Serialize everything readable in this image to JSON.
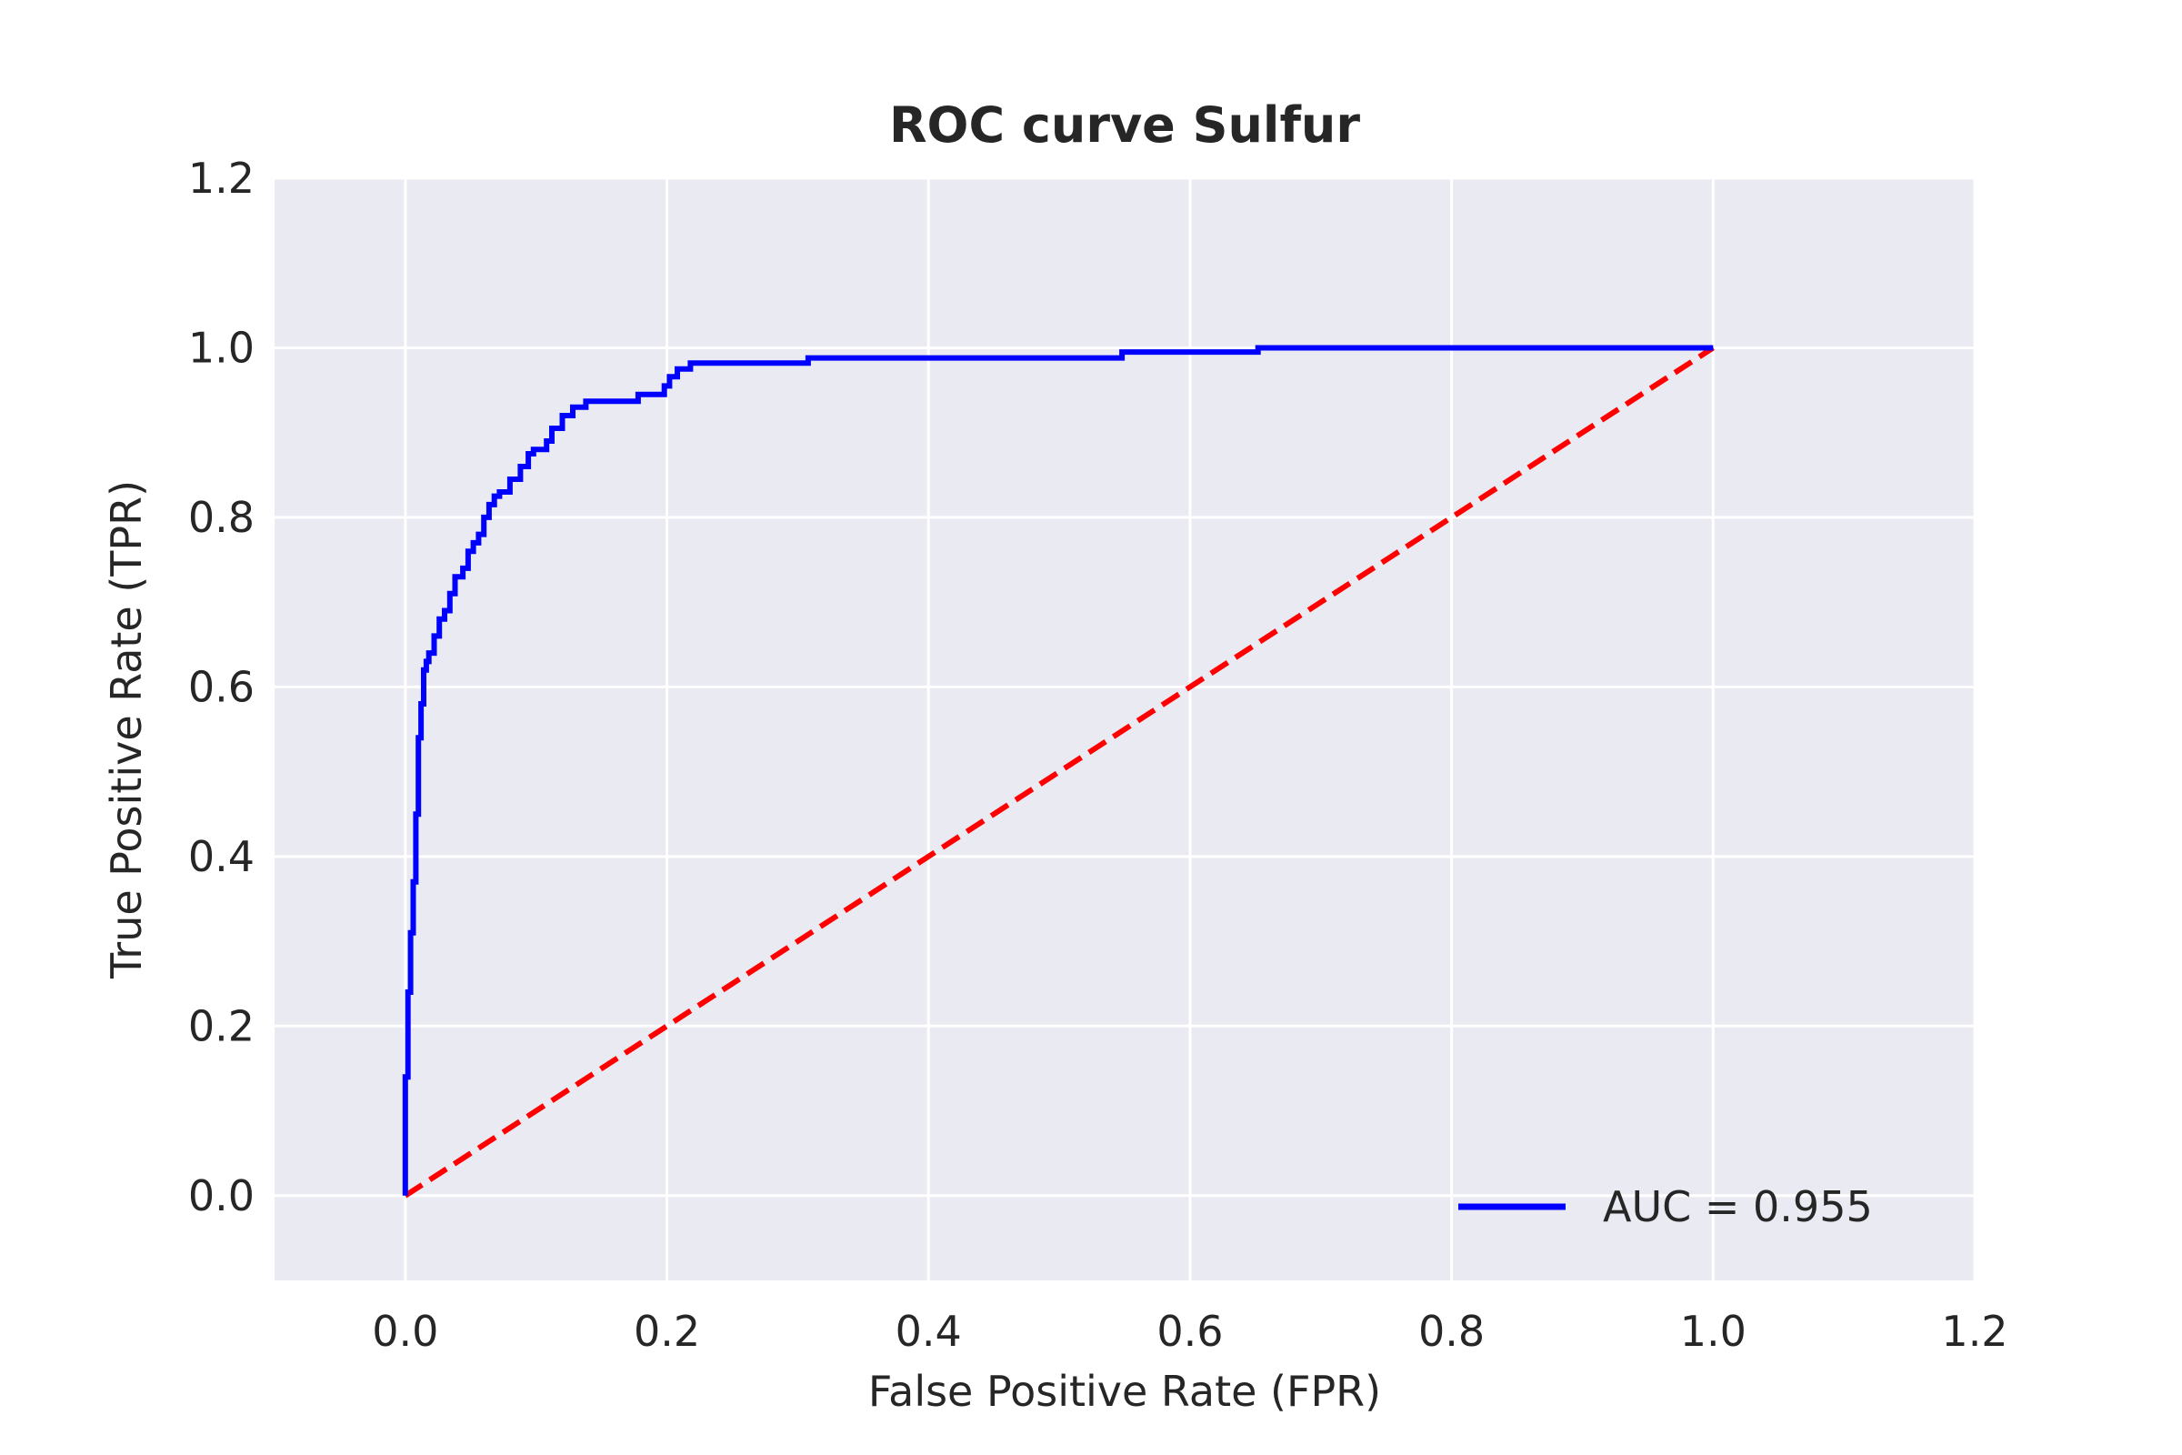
{
  "chart_data": {
    "type": "line",
    "title": "ROC curve Sulfur",
    "xlabel": "False Positive Rate (FPR)",
    "ylabel": "True Positive Rate (TPR)",
    "xlim": [
      -0.1,
      1.2
    ],
    "ylim": [
      -0.1,
      1.2
    ],
    "xticks": [
      0.0,
      0.2,
      0.4,
      0.6,
      0.8,
      1.0,
      1.2
    ],
    "yticks": [
      0.0,
      0.2,
      0.4,
      0.6,
      0.8,
      1.0,
      1.2
    ],
    "xtick_labels": [
      "0.0",
      "0.2",
      "0.4",
      "0.6",
      "0.8",
      "1.0",
      "1.2"
    ],
    "ytick_labels": [
      "0.0",
      "0.2",
      "0.4",
      "0.6",
      "0.8",
      "1.0",
      "1.2"
    ],
    "grid": true,
    "background": "#eaeaf2",
    "legend_position": "lower-right",
    "series": [
      {
        "name": "AUC = 0.955",
        "color": "#0000ff",
        "style": "solid",
        "x": [
          0.0,
          0.0,
          0.002,
          0.002,
          0.004,
          0.004,
          0.006,
          0.006,
          0.008,
          0.008,
          0.01,
          0.01,
          0.012,
          0.012,
          0.014,
          0.014,
          0.016,
          0.016,
          0.018,
          0.018,
          0.022,
          0.022,
          0.026,
          0.026,
          0.03,
          0.03,
          0.034,
          0.034,
          0.038,
          0.038,
          0.044,
          0.044,
          0.048,
          0.048,
          0.052,
          0.052,
          0.056,
          0.056,
          0.06,
          0.06,
          0.064,
          0.064,
          0.068,
          0.068,
          0.072,
          0.072,
          0.08,
          0.08,
          0.088,
          0.088,
          0.094,
          0.094,
          0.098,
          0.098,
          0.108,
          0.108,
          0.112,
          0.112,
          0.12,
          0.12,
          0.128,
          0.128,
          0.138,
          0.138,
          0.178,
          0.178,
          0.198,
          0.198,
          0.202,
          0.202,
          0.208,
          0.208,
          0.218,
          0.218,
          0.308,
          0.308,
          0.548,
          0.548,
          0.652,
          0.652,
          1.0
        ],
        "y": [
          0.0,
          0.14,
          0.14,
          0.24,
          0.24,
          0.31,
          0.31,
          0.37,
          0.37,
          0.45,
          0.45,
          0.54,
          0.54,
          0.58,
          0.58,
          0.62,
          0.62,
          0.63,
          0.63,
          0.64,
          0.64,
          0.66,
          0.66,
          0.68,
          0.68,
          0.69,
          0.69,
          0.71,
          0.71,
          0.73,
          0.73,
          0.74,
          0.74,
          0.76,
          0.76,
          0.77,
          0.77,
          0.78,
          0.78,
          0.8,
          0.8,
          0.815,
          0.815,
          0.825,
          0.825,
          0.83,
          0.83,
          0.845,
          0.845,
          0.86,
          0.86,
          0.875,
          0.875,
          0.88,
          0.88,
          0.89,
          0.89,
          0.905,
          0.905,
          0.92,
          0.92,
          0.93,
          0.93,
          0.937,
          0.937,
          0.945,
          0.945,
          0.955,
          0.955,
          0.966,
          0.966,
          0.975,
          0.975,
          0.982,
          0.982,
          0.988,
          0.988,
          0.995,
          0.995,
          1.0,
          1.0
        ]
      },
      {
        "name": "",
        "color": "#ff0000",
        "style": "dashed",
        "x": [
          0.0,
          1.0
        ],
        "y": [
          0.0,
          1.0
        ]
      }
    ]
  }
}
